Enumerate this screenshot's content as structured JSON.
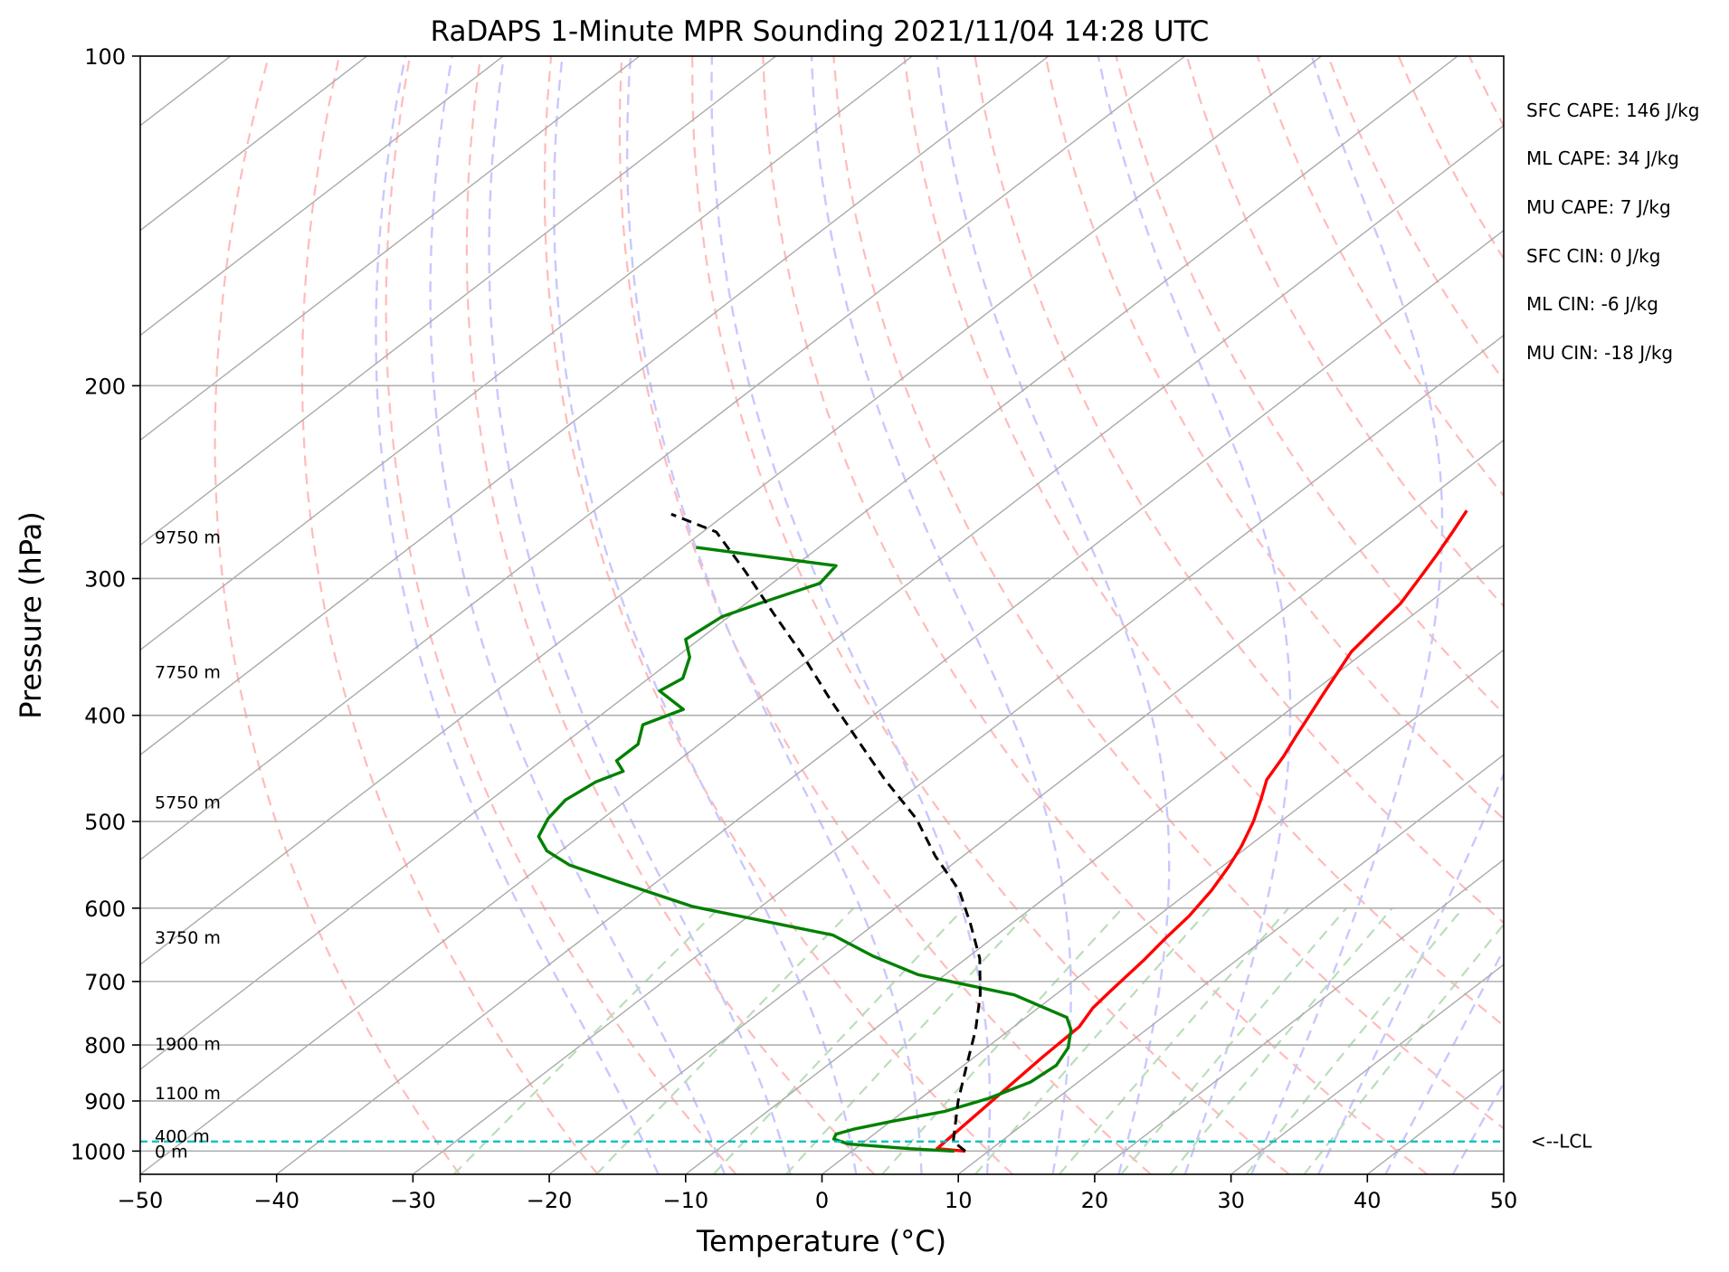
{
  "chart_data": {
    "type": "line",
    "title": "RaDAPS 1-Minute MPR Sounding 2021/11/04 14:28 UTC",
    "xlabel": "Temperature (°C)",
    "ylabel": "Pressure (hPa)",
    "xlim": [
      -50,
      50
    ],
    "ylim": [
      1050,
      100
    ],
    "y_scale": "log",
    "skew": "skew-T log-p diagram",
    "grid": true,
    "x_ticks": [
      -50,
      -40,
      -30,
      -20,
      -10,
      0,
      10,
      20,
      30,
      40,
      50
    ],
    "x_tick_labels": [
      "−50",
      "−40",
      "−30",
      "−20",
      "−10",
      "0",
      "10",
      "20",
      "30",
      "40",
      "50"
    ],
    "y_ticks": [
      100,
      200,
      300,
      400,
      500,
      600,
      700,
      800,
      900,
      1000
    ],
    "y_tick_labels": [
      "100",
      "200",
      "300",
      "400",
      "500",
      "600",
      "700",
      "800",
      "900",
      "1000"
    ],
    "height_labels": [
      {
        "text": "9750 m",
        "pressure": 275
      },
      {
        "text": "7750 m",
        "pressure": 365
      },
      {
        "text": "5750 m",
        "pressure": 480
      },
      {
        "text": "3750 m",
        "pressure": 638
      },
      {
        "text": "1900 m",
        "pressure": 798
      },
      {
        "text": "1100 m",
        "pressure": 885
      },
      {
        "text": "400 m",
        "pressure": 968
      },
      {
        "text": "0 m",
        "pressure": 1000
      }
    ],
    "lcl": {
      "pressure": 980,
      "label": "<--LCL",
      "color": "#00bfbf"
    },
    "series": [
      {
        "key": "temperature",
        "color": "#ff0000",
        "points": [
          [
            8.3,
            1000
          ],
          [
            6.0,
            995
          ],
          [
            5.0,
            820
          ],
          [
            4.8,
            770
          ],
          [
            4.0,
            740
          ],
          [
            3.7,
            715
          ],
          [
            3.2,
            670
          ],
          [
            2.7,
            640
          ],
          [
            2.3,
            610
          ],
          [
            1.5,
            578
          ],
          [
            0.5,
            550
          ],
          [
            -0.5,
            527
          ],
          [
            -2.0,
            500
          ],
          [
            -3.5,
            478
          ],
          [
            -5.0,
            458
          ],
          [
            -6.0,
            436
          ],
          [
            -7.0,
            418
          ],
          [
            -8.0,
            400
          ],
          [
            -9.0,
            383
          ],
          [
            -10.0,
            366
          ],
          [
            -11.0,
            350
          ],
          [
            -11.5,
            333
          ],
          [
            -12.0,
            316
          ],
          [
            -13.0,
            300
          ],
          [
            -14.0,
            285
          ],
          [
            -15.0,
            272
          ],
          [
            -16.0,
            260
          ]
        ]
      },
      {
        "key": "dewpoint",
        "color": "#008000",
        "points": [
          [
            7.5,
            1000
          ],
          [
            4.0,
            995
          ],
          [
            -1.0,
            985
          ],
          [
            -2.5,
            975
          ],
          [
            -2.8,
            965
          ],
          [
            -2.0,
            955
          ],
          [
            0.0,
            940
          ],
          [
            3.0,
            920
          ],
          [
            5.0,
            895
          ],
          [
            6.5,
            865
          ],
          [
            6.8,
            835
          ],
          [
            6.0,
            805
          ],
          [
            4.5,
            775
          ],
          [
            3.0,
            755
          ],
          [
            -3.0,
            720
          ],
          [
            -12.0,
            690
          ],
          [
            -17.0,
            664
          ],
          [
            -22.0,
            635
          ],
          [
            -35.0,
            598
          ],
          [
            -43.0,
            567
          ],
          [
            -48.0,
            548
          ],
          [
            -51.0,
            532
          ],
          [
            -53.0,
            516
          ],
          [
            -54.0,
            497
          ],
          [
            -54.5,
            478
          ],
          [
            -54.0,
            460
          ],
          [
            -53.0,
            450
          ],
          [
            -54.5,
            440
          ],
          [
            -54.5,
            425
          ],
          [
            -56.0,
            408
          ],
          [
            -54.5,
            395
          ],
          [
            -58.0,
            380
          ],
          [
            -57.5,
            370
          ],
          [
            -59.0,
            354
          ],
          [
            -61.0,
            341
          ],
          [
            -60.5,
            325
          ],
          [
            -59.0,
            316
          ],
          [
            -56.5,
            303
          ],
          [
            -57.0,
            292
          ],
          [
            -69.0,
            281
          ]
        ]
      },
      {
        "key": "parcel",
        "color": "#000000",
        "dashed": true,
        "points": [
          [
            8.3,
            1000
          ],
          [
            6.5,
            980
          ],
          [
            3.0,
            900
          ],
          [
            0.0,
            830
          ],
          [
            -2.5,
            775
          ],
          [
            -5.5,
            720
          ],
          [
            -9.0,
            667
          ],
          [
            -13.0,
            620
          ],
          [
            -17.0,
            578
          ],
          [
            -22.0,
            538
          ],
          [
            -27.0,
            497
          ],
          [
            -33.0,
            458
          ],
          [
            -39.0,
            420
          ],
          [
            -45.0,
            385
          ],
          [
            -51.0,
            352
          ],
          [
            -57.0,
            323
          ],
          [
            -63.0,
            296
          ],
          [
            -69.0,
            272
          ],
          [
            -74.0,
            262
          ]
        ]
      }
    ],
    "isotherm_color": "#aaaaaa",
    "dry_adiabat_color": "#ffbbbb",
    "moist_adiabat_color": "#c8c8ff",
    "mixing_ratio_color": "#bbddbb"
  },
  "annotations": [
    {
      "text": "SFC CAPE: 146 J/kg"
    },
    {
      "text": "ML CAPE: 34 J/kg"
    },
    {
      "text": "MU CAPE: 7 J/kg"
    },
    {
      "text": "SFC CIN: 0 J/kg"
    },
    {
      "text": "ML CIN: -6 J/kg"
    },
    {
      "text": "MU CIN: -18 J/kg"
    }
  ]
}
